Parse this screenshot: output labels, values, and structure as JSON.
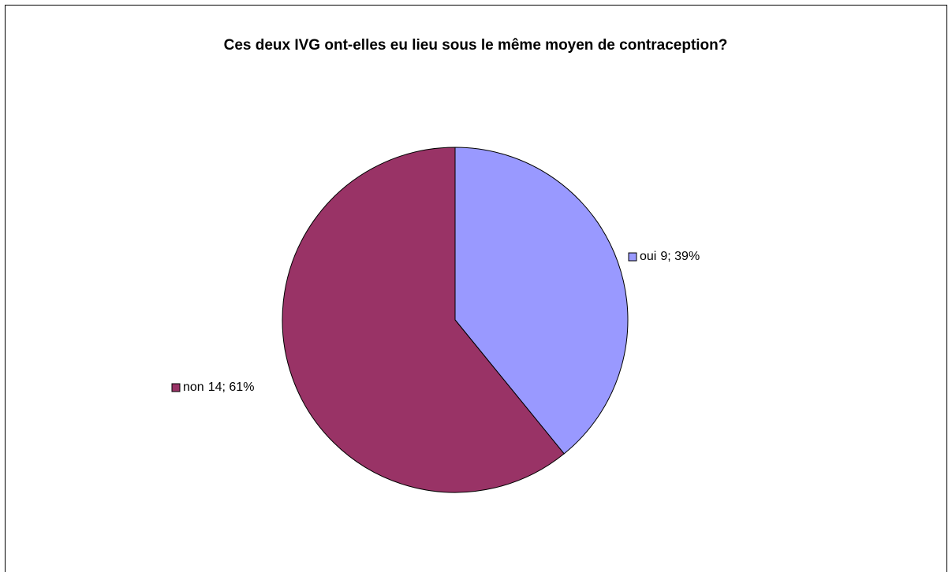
{
  "chart_data": {
    "type": "pie",
    "title": "Ces deux IVG ont-elles eu lieu sous le même moyen de contraception?",
    "categories": [
      "oui",
      "non"
    ],
    "values": [
      9,
      14
    ],
    "value_labels": [
      "9; 39%",
      "14; 61%"
    ],
    "colors": [
      "#9999ff",
      "#993366"
    ]
  }
}
